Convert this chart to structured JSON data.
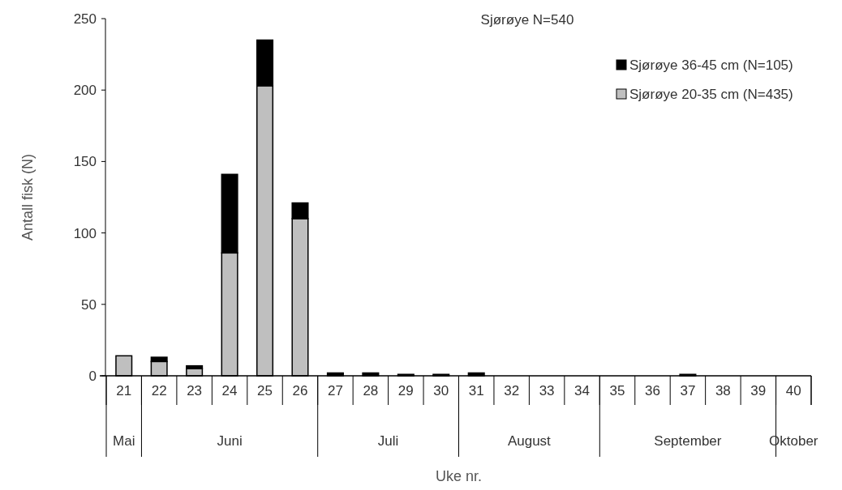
{
  "chart_data": {
    "type": "bar",
    "title": "Sjørøye  N=540",
    "xlabel": "Uke nr.",
    "ylabel": "Antall fisk (N)",
    "stacked": true,
    "legend": "top right",
    "grid": false,
    "categories": [
      "21",
      "22",
      "23",
      "24",
      "25",
      "26",
      "27",
      "28",
      "29",
      "30",
      "31",
      "32",
      "33",
      "34",
      "35",
      "36",
      "37",
      "38",
      "39",
      "40"
    ],
    "series": [
      {
        "name": "Sjørøye 20-35 cm (N=435)",
        "color": "#bfbfbf",
        "values": [
          14,
          10,
          5,
          86,
          203,
          110,
          0,
          0,
          0,
          0,
          0,
          0,
          0,
          0,
          0,
          0,
          0,
          0,
          0,
          0
        ]
      },
      {
        "name": "Sjørøye 36-45 cm (N=105)",
        "color": "#000000",
        "values": [
          0,
          3,
          2,
          55,
          32,
          11,
          2,
          2,
          1,
          1,
          2,
          0,
          0,
          0,
          0,
          0,
          1,
          0,
          0,
          0
        ]
      }
    ],
    "ylim": [
      0,
      250
    ],
    "yticks": [
      0,
      50,
      100,
      150,
      200,
      250
    ],
    "annotations": [
      "Mai",
      "Juni",
      "Juli",
      "August",
      "September",
      "Oktober"
    ]
  }
}
